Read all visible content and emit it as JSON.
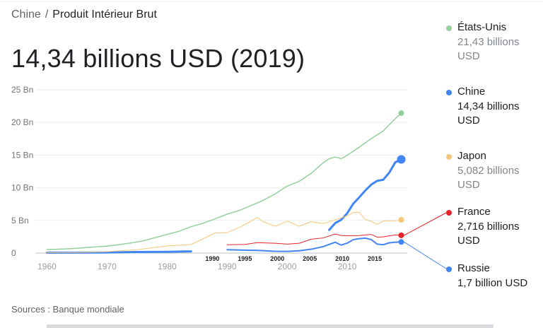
{
  "breadcrumb": {
    "country": "Chine",
    "separator": "/",
    "indicator": "Produit Intérieur Brut"
  },
  "headline": "14,34 billions USD (2019)",
  "legend": [
    {
      "name": "États-Unis",
      "value": "21,43 billions USD",
      "color": "#93d09a",
      "muted": true
    },
    {
      "name": "Chine",
      "value": "14,34 billions USD",
      "color": "#4285f4",
      "muted": false
    },
    {
      "name": "Japon",
      "value": "5,082 billions USD",
      "color": "#f6c77a",
      "muted": true
    },
    {
      "name": "France",
      "value": "2,716 billions USD",
      "color": "#e8232b",
      "muted": false
    },
    {
      "name": "Russie",
      "value": "1,7 billion USD",
      "color": "#4285f4",
      "muted": false
    }
  ],
  "sources": "Sources : Banque mondiale",
  "chart_data": {
    "type": "line",
    "xlim": [
      1959,
      2020
    ],
    "ylim": [
      0,
      25
    ],
    "grid": true,
    "y_ticks": [
      {
        "value": 0,
        "label": "0"
      },
      {
        "value": 5,
        "label": "5 Bn"
      },
      {
        "value": 10,
        "label": "10 Bn"
      },
      {
        "value": 15,
        "label": "15 Bn"
      },
      {
        "value": 20,
        "label": "20 Bn"
      },
      {
        "value": 25,
        "label": "25 Bn"
      }
    ],
    "x_ticks": [
      {
        "value": 1960,
        "label": "1960"
      },
      {
        "value": 1970,
        "label": "1970"
      },
      {
        "value": 1980,
        "label": "1980"
      },
      {
        "value": 1990,
        "label": "1990"
      },
      {
        "value": 2000,
        "label": "2000"
      },
      {
        "value": 2010,
        "label": "2010"
      }
    ],
    "inset": {
      "xlim": [
        1988,
        2020
      ],
      "ticks": [
        {
          "value": 1990,
          "label": "1990"
        },
        {
          "value": 1995,
          "label": "1995"
        },
        {
          "value": 2000,
          "label": "2000"
        },
        {
          "value": 2005,
          "label": "2005"
        },
        {
          "value": 2010,
          "label": "2010"
        },
        {
          "value": 2015,
          "label": "2015"
        }
      ]
    },
    "series": [
      {
        "name": "États-Unis",
        "color": "#93d09a",
        "width": 1.5,
        "end_value": 21.43,
        "x": [
          1960,
          1962,
          1964,
          1966,
          1968,
          1970,
          1972,
          1974,
          1976,
          1978,
          1980,
          1982,
          1984,
          1986,
          1988,
          1990,
          1992,
          1994,
          1996,
          1998,
          2000,
          2002,
          2004,
          2006,
          2007,
          2008,
          2009,
          2010,
          2012,
          2014,
          2016,
          2018,
          2019
        ],
        "y": [
          0.54,
          0.6,
          0.68,
          0.8,
          0.94,
          1.07,
          1.28,
          1.55,
          1.87,
          2.35,
          2.86,
          3.34,
          4.04,
          4.58,
          5.24,
          5.96,
          6.52,
          7.29,
          8.07,
          9.06,
          10.25,
          10.98,
          12.21,
          13.82,
          14.45,
          14.71,
          14.45,
          14.99,
          16.2,
          17.52,
          18.71,
          20.58,
          21.43
        ]
      },
      {
        "name": "Chine",
        "color": "#4285f4",
        "width": 3,
        "end_value": 14.34,
        "x": [
          1960,
          1965,
          1970,
          1975,
          1980,
          1984,
          2007,
          2008,
          2009,
          2010,
          2011,
          2012,
          2013,
          2014,
          2015,
          2016,
          2017,
          2018,
          2019
        ],
        "y": [
          0.06,
          0.07,
          0.09,
          0.16,
          0.19,
          0.26,
          3.55,
          4.59,
          5.1,
          6.09,
          7.55,
          8.53,
          9.57,
          10.48,
          11.06,
          11.23,
          12.31,
          13.89,
          14.34
        ]
      },
      {
        "name": "Japon",
        "color": "#f6c77a",
        "width": 1,
        "end_value": 5.082,
        "x": [
          1960,
          1965,
          1970,
          1975,
          1980,
          1984,
          1988,
          1990,
          1992,
          1994,
          1995,
          1996,
          1998,
          2000,
          2002,
          2004,
          2006,
          2008,
          2010,
          2011,
          2012,
          2013,
          2014,
          2015,
          2016,
          2018,
          2019
        ],
        "y": [
          0.04,
          0.09,
          0.21,
          0.52,
          1.1,
          1.3,
          3.07,
          3.13,
          3.9,
          4.9,
          5.45,
          4.8,
          4.1,
          4.9,
          4.1,
          4.8,
          4.5,
          5.1,
          5.7,
          6.2,
          6.27,
          5.16,
          4.85,
          4.39,
          4.92,
          4.95,
          5.08
        ]
      },
      {
        "name": "France",
        "color": "#e8232b",
        "width": 1,
        "end_value": 2.716,
        "x": [
          1990,
          1993,
          1995,
          1998,
          2000,
          2002,
          2004,
          2006,
          2008,
          2009,
          2010,
          2012,
          2014,
          2015,
          2016,
          2018,
          2019
        ],
        "y": [
          1.27,
          1.32,
          1.6,
          1.5,
          1.36,
          1.5,
          2.12,
          2.32,
          2.92,
          2.69,
          2.65,
          2.68,
          2.85,
          2.44,
          2.47,
          2.79,
          2.72
        ]
      },
      {
        "name": "Russie",
        "color": "#4285f4",
        "width": 2,
        "end_value": 1.7,
        "x": [
          1990,
          1993,
          1995,
          1998,
          2000,
          2002,
          2004,
          2006,
          2008,
          2009,
          2010,
          2011,
          2012,
          2013,
          2014,
          2015,
          2016,
          2017,
          2018,
          2019
        ],
        "y": [
          0.52,
          0.44,
          0.4,
          0.27,
          0.26,
          0.35,
          0.59,
          0.99,
          1.66,
          1.22,
          1.52,
          2.05,
          2.21,
          2.29,
          2.06,
          1.36,
          1.28,
          1.57,
          1.66,
          1.7
        ]
      }
    ]
  }
}
